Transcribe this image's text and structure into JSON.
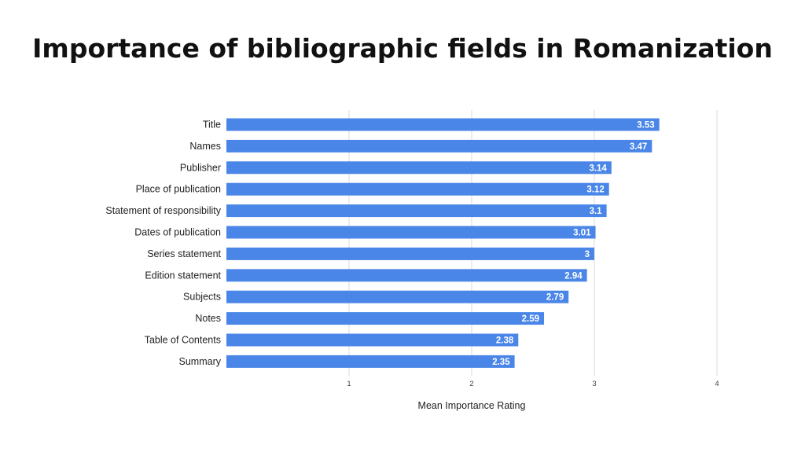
{
  "title": "Importance of bibliographic fields in Romanization",
  "chart_data": {
    "type": "bar",
    "orientation": "horizontal",
    "categories": [
      "Title",
      "Names",
      "Publisher",
      "Place of publication",
      "Statement of responsibility",
      "Dates of publication",
      "Series statement",
      "Edition statement",
      "Subjects",
      "Notes",
      "Table of Contents",
      "Summary"
    ],
    "values": [
      3.53,
      3.47,
      3.14,
      3.12,
      3.1,
      3.01,
      3,
      2.94,
      2.79,
      2.59,
      2.38,
      2.35
    ],
    "value_labels": [
      "3.53",
      "3.47",
      "3.14",
      "3.12",
      "3.1",
      "3.01",
      "3",
      "2.94",
      "2.79",
      "2.59",
      "2.38",
      "2.35"
    ],
    "xlabel": "Mean Importance Rating",
    "ylabel": "",
    "xlim": [
      0,
      4
    ],
    "xticks": [
      1,
      2,
      3,
      4
    ],
    "xtick_labels": [
      "1",
      "2",
      "3",
      "4"
    ],
    "grid": true,
    "legend": "none",
    "bar_color": "#4a86e8"
  }
}
